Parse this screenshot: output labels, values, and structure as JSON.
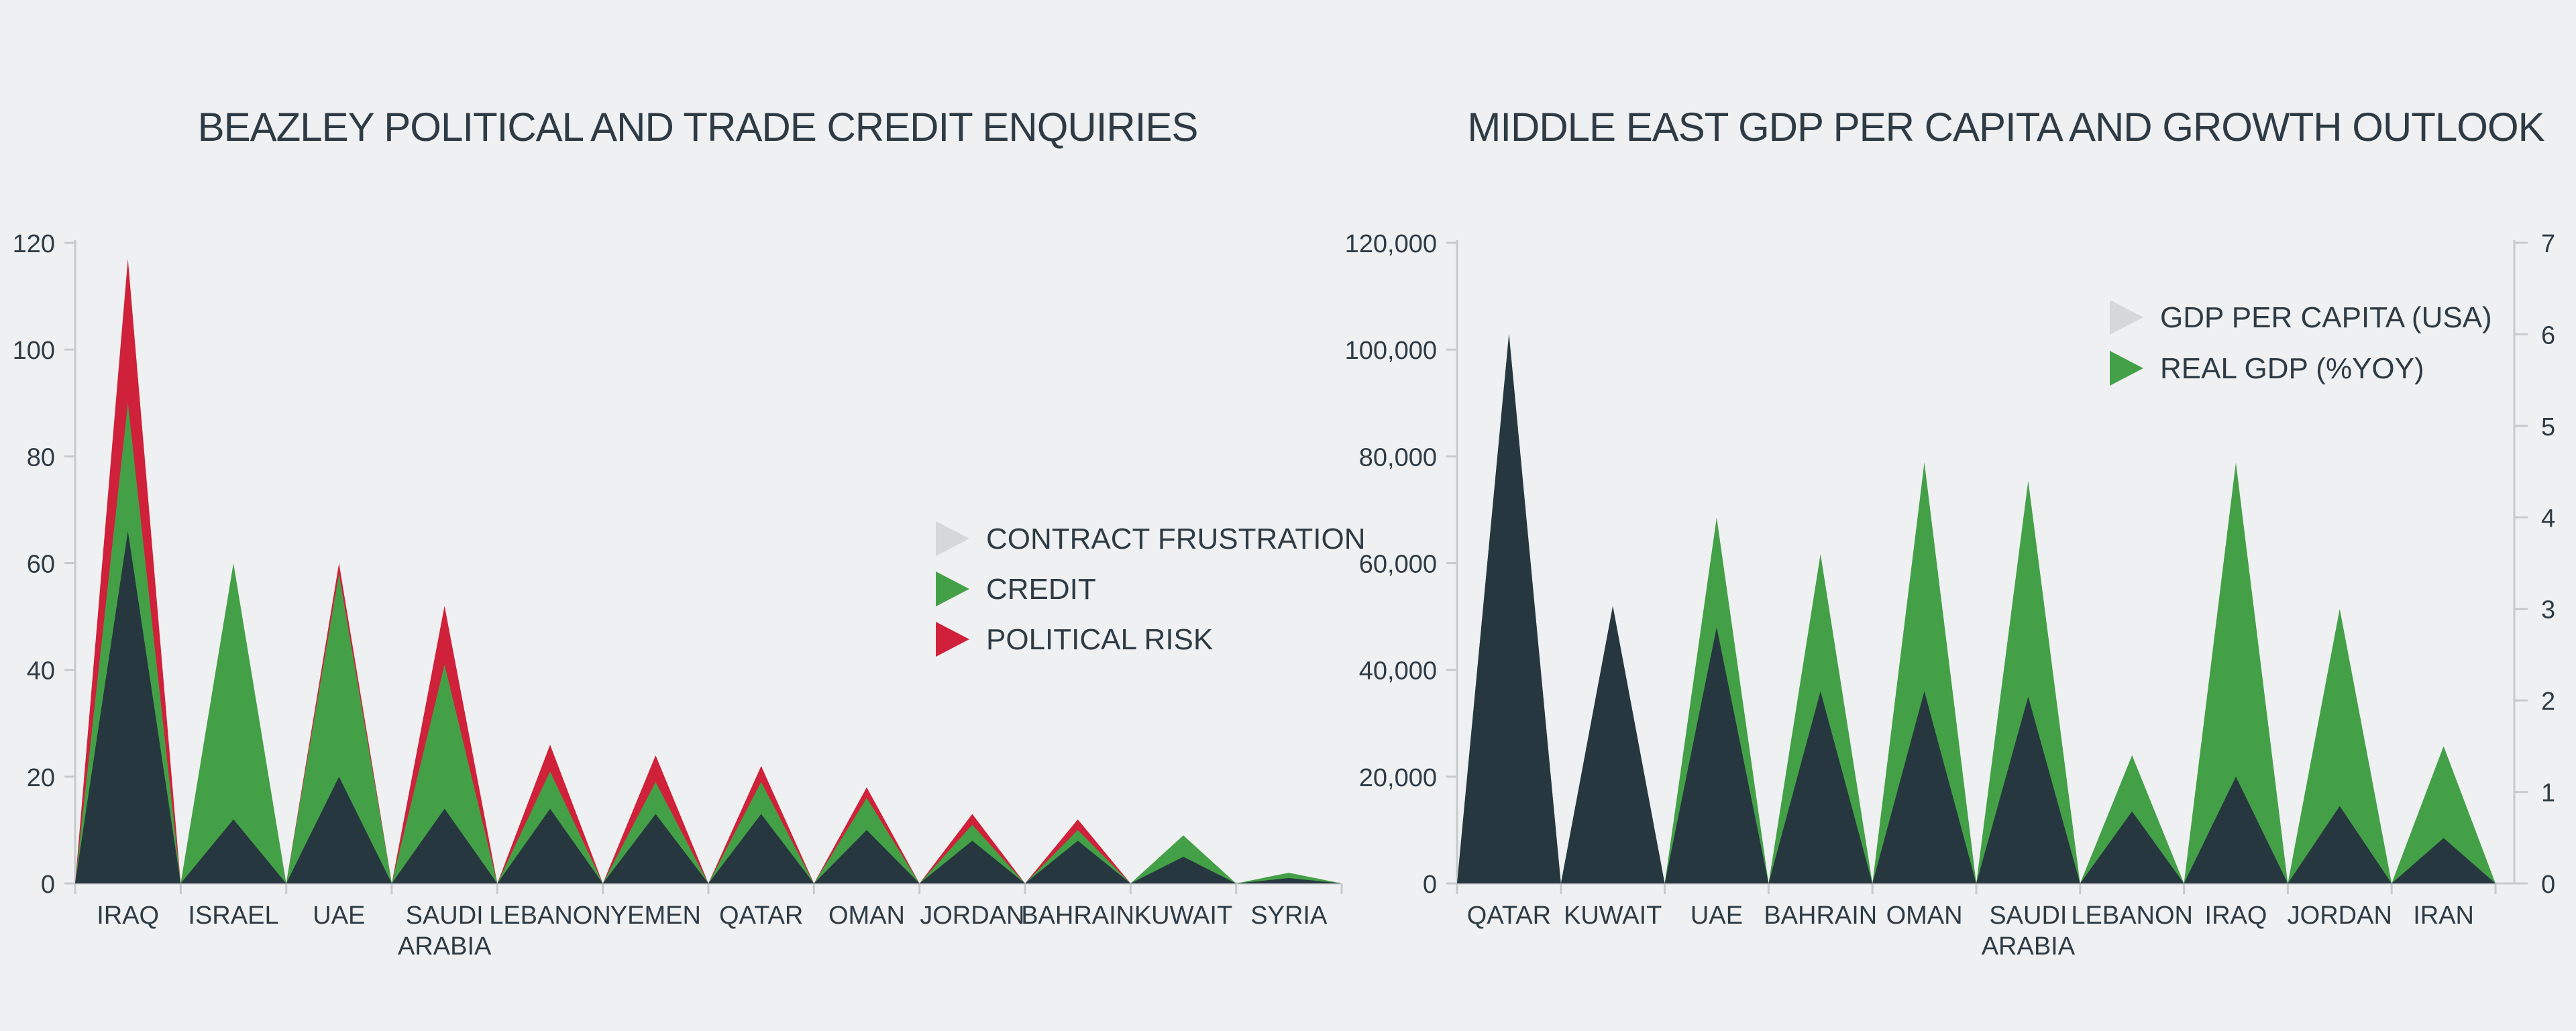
{
  "colors": {
    "background": "#eff0f1",
    "text": "#2e3b45",
    "dark": "#27373f",
    "green": "#43a047",
    "red": "#d0213a",
    "light_gray": "#d5d7d9",
    "axis": "#c7cacd"
  },
  "chart_data": [
    {
      "type": "area",
      "title": "BEAZLEY POLITICAL AND TRADE CREDIT ENQUIRIES",
      "categories": [
        [
          "IRAQ"
        ],
        [
          "ISRAEL"
        ],
        [
          "UAE"
        ],
        [
          "SAUDI",
          "ARABIA"
        ],
        [
          "LEBANON"
        ],
        [
          "YEMEN"
        ],
        [
          "QATAR"
        ],
        [
          "OMAN"
        ],
        [
          "JORDAN"
        ],
        [
          "BAHRAIN"
        ],
        [
          "KUWAIT"
        ],
        [
          "SYRIA"
        ]
      ],
      "series": [
        {
          "name": "POLITICAL RISK",
          "color": "#d0213a",
          "values": [
            117,
            0,
            60,
            52,
            26,
            24,
            22,
            18,
            13,
            12,
            0,
            0
          ]
        },
        {
          "name": "CREDIT",
          "color": "#43a047",
          "values": [
            90,
            60,
            58,
            41,
            21,
            19,
            19,
            16,
            11,
            10,
            9,
            2
          ]
        },
        {
          "name": "CONTRACT FRUSTRATION",
          "color": "#27373f",
          "values": [
            66,
            12,
            20,
            14,
            14,
            13,
            13,
            10,
            8,
            8,
            5,
            1
          ]
        }
      ],
      "legend": [
        "CONTRACT FRUSTRATION",
        "CREDIT",
        "POLITICAL RISK"
      ],
      "legend_colors": [
        "#d5d7d9",
        "#43a047",
        "#d0213a"
      ],
      "yticks": [
        "0",
        "20",
        "40",
        "60",
        "80",
        "100",
        "120"
      ],
      "ylim": [
        0,
        120
      ],
      "legend_position": "center-right",
      "grid": false
    },
    {
      "type": "area",
      "title": "MIDDLE EAST GDP PER CAPITA AND GROWTH OUTLOOK",
      "categories": [
        [
          "QATAR"
        ],
        [
          "KUWAIT"
        ],
        [
          "UAE"
        ],
        [
          "BAHRAIN"
        ],
        [
          "OMAN"
        ],
        [
          "SAUDI",
          "ARABIA"
        ],
        [
          "LEBANON"
        ],
        [
          "IRAQ"
        ],
        [
          "JORDAN"
        ],
        [
          "IRAN"
        ]
      ],
      "series": [
        {
          "name": "REAL GDP (%YOY)",
          "color": "#43a047",
          "axis": "right",
          "values": [
            6.0,
            2.8,
            4.0,
            3.6,
            4.6,
            4.4,
            1.4,
            4.6,
            3.0,
            1.5
          ]
        },
        {
          "name": "GDP PER CAPITA (USA)",
          "color": "#27373f",
          "axis": "left",
          "values": [
            103000,
            52000,
            48000,
            36000,
            36000,
            35000,
            13500,
            20000,
            14500,
            8500
          ]
        }
      ],
      "legend": [
        "GDP PER CAPITA (USA)",
        "REAL GDP (%YOY)"
      ],
      "legend_colors": [
        "#d5d7d9",
        "#43a047"
      ],
      "yticks": [
        "0",
        "20,000",
        "40,000",
        "60,000",
        "80,000",
        "100,000",
        "120,000"
      ],
      "ylim": [
        0,
        120000
      ],
      "y2ticks": [
        "0",
        "1",
        "2",
        "3",
        "4",
        "5",
        "6",
        "7"
      ],
      "y2lim": [
        0,
        7
      ],
      "legend_position": "top-right",
      "grid": false
    }
  ]
}
